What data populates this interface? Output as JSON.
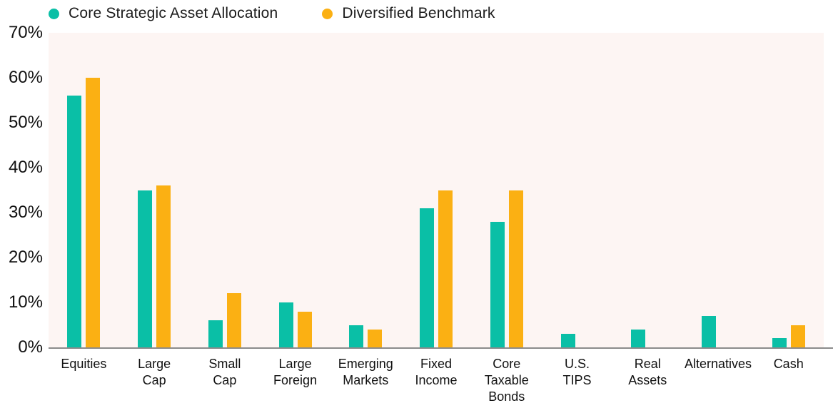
{
  "colors": {
    "series_core": "#0ABFA6",
    "series_benchmark": "#FBB013",
    "plot_background": "#FDF5F3",
    "axis_line": "#8B8B8B",
    "text": "#1B1B1B"
  },
  "legend": {
    "items": [
      {
        "label": "Core Strategic Asset Allocation",
        "color": "#0ABFA6"
      },
      {
        "label": "Diversified Benchmark",
        "color": "#FBB013"
      }
    ]
  },
  "chart_data": {
    "type": "bar",
    "title": "",
    "xlabel": "",
    "ylabel": "",
    "categories": [
      "Equities",
      "Large Cap",
      "Small Cap",
      "Large Foreign",
      "Emerging Markets",
      "Fixed Income",
      "Core Taxable Bonds",
      "U.S. TIPS",
      "Real Assets",
      "Alternatives",
      "Cash"
    ],
    "series": [
      {
        "name": "Core Strategic Asset Allocation",
        "color": "#0ABFA6",
        "values": [
          56,
          35,
          6,
          10,
          5,
          31,
          28,
          3,
          4,
          7,
          2
        ]
      },
      {
        "name": "Diversified Benchmark",
        "color": "#FBB013",
        "values": [
          60,
          36,
          12,
          8,
          4,
          35,
          35,
          null,
          null,
          null,
          5
        ]
      }
    ],
    "ylim": [
      0,
      70
    ],
    "yticks": [
      0,
      10,
      20,
      30,
      40,
      50,
      60,
      70
    ],
    "ytick_suffix": "%",
    "grid": false,
    "legend_position": "top-left",
    "plot_background": "#FDF5F3"
  }
}
